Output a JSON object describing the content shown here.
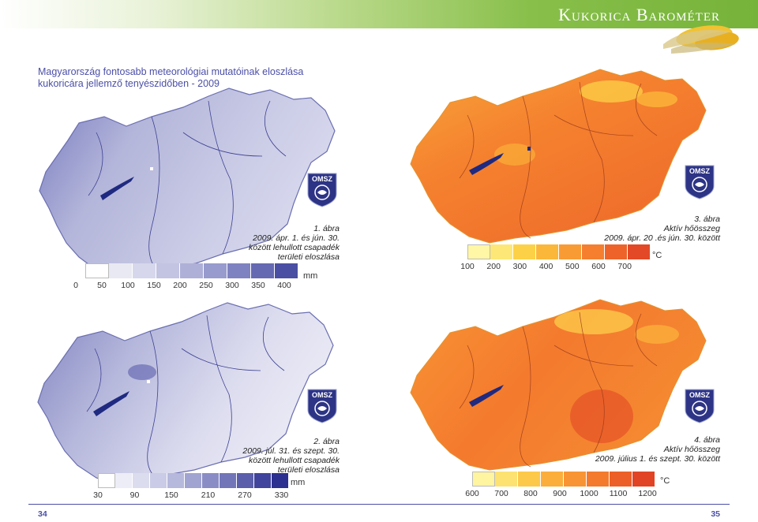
{
  "header": {
    "title": "Kukorica Barométer"
  },
  "subtitle": {
    "line1": "Magyarország fontosabb meteorológiai mutatóinak eloszlása",
    "line2": "kukoricára jellemző tenyészidőben - 2009"
  },
  "logo_text": "OMSZ",
  "fig1": {
    "num": "1. ábra",
    "l1": "2009. ápr. 1. és jún. 30.",
    "l2": "között lehullott csapadék",
    "l3": "területi eloszlása",
    "unit": "mm",
    "ticks": [
      "0",
      "50",
      "100",
      "150",
      "200",
      "250",
      "300",
      "350",
      "400"
    ],
    "colors": [
      "#ffffff",
      "#e9e9f3",
      "#d6d7ec",
      "#c3c4e2",
      "#aeb0d8",
      "#989bcd",
      "#7f82c0",
      "#6569b2",
      "#4b4fa3"
    ]
  },
  "fig2": {
    "num": "2. ábra",
    "l1": "2009. júl. 31. és szept. 30.",
    "l2": "között lehullott csapadék",
    "l3": "területi eloszlása",
    "unit": "mm",
    "ticks": [
      "30",
      "90",
      "150",
      "210",
      "270",
      "330"
    ],
    "colors": [
      "#ffffff",
      "#ecedf6",
      "#dcdcef",
      "#cacbe6",
      "#b6b8dc",
      "#a1a3d1",
      "#8a8dc5",
      "#7276b8",
      "#5a5eab",
      "#40449c",
      "#2c3090"
    ]
  },
  "fig3": {
    "num": "3. ábra",
    "l1": "Aktív hőösszeg",
    "l2": "2009. ápr. 20 .és jún. 30. között",
    "unit": "°C",
    "ticks": [
      "100",
      "200",
      "300",
      "400",
      "500",
      "600",
      "700"
    ],
    "colors": [
      "#fff6a6",
      "#fde776",
      "#fcd147",
      "#fbb73a",
      "#f99b34",
      "#f57f2f",
      "#ee6329",
      "#e34926"
    ]
  },
  "fig4": {
    "num": "4. ábra",
    "l1": "Aktív hőösszeg",
    "l2": "2009. július 1. és szept. 30. között",
    "unit": "°C",
    "ticks": [
      "600",
      "700",
      "800",
      "900",
      "1000",
      "1100",
      "1200"
    ],
    "colors": [
      "#fff4a0",
      "#fde272",
      "#fcc94a",
      "#fbae3b",
      "#f89434",
      "#f47a2e",
      "#ec5f28",
      "#e04425"
    ]
  },
  "pages": {
    "left": "34",
    "right": "35"
  }
}
